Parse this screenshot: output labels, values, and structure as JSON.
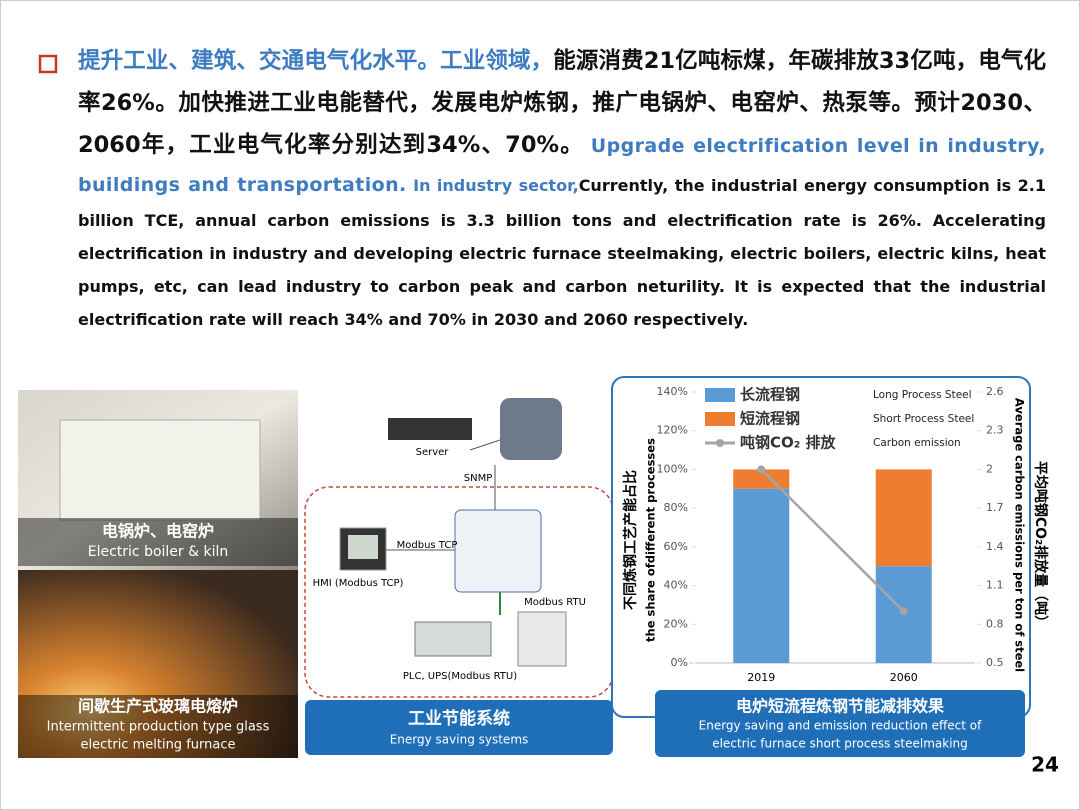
{
  "header": {
    "zh_title": "提升工业、建筑、交通电气化水平。",
    "zh_sector": "工业领域，",
    "zh_body": "能源消费21亿吨标煤，年碳排放33亿吨，电气化率26%。加快推进工业电能替代，发展电炉炼钢，推广电锅炉、电窑炉、热泵等。预计2030、2060年，工业电气化率分别达到34%、70%。",
    "en_title": "Upgrade electrification level in industry, buildings and transportation.",
    "en_sector": "In industry sector,",
    "en_body": "Currently, the industrial energy consumption is 2.1 billion TCE, annual carbon emissions is 3.3 billion tons and electrification rate is 26%. Accelerating electrification in industry and developing electric furnace steelmaking, electric boilers, electric kilns, heat pumps, etc, can lead industry to carbon peak and carbon neturility. It is expected that the industrial electrification rate will reach 34% and 70% in 2030 and 2060 respectively."
  },
  "photos": [
    {
      "zh": "电锅炉、电窑炉",
      "en_lines": [
        "Electric boiler & kiln"
      ]
    },
    {
      "zh": "间歇生产式玻璃电熔炉",
      "en_lines": [
        "Intermittent production type glass",
        "electric melting furnace"
      ]
    }
  ],
  "diagram": {
    "server": "Server",
    "snmp": "SNMP",
    "modbus_tcp": "Modbus TCP",
    "hmi": "HMI (Modbus TCP)",
    "modbus_rtu": "Modbus RTU",
    "plc_ups": "PLC, UPS(Modbus RTU)",
    "caption_zh": "工业节能系统",
    "caption_en": "Energy saving systems"
  },
  "chart_data": {
    "type": "bar",
    "stacked": true,
    "categories": [
      "2019",
      "2060"
    ],
    "series": [
      {
        "name": "长流程钢",
        "name_en": "Long Process Steel",
        "color": "#5b9bd5",
        "values": [
          90,
          50
        ]
      },
      {
        "name": "短流程钢",
        "name_en": "Short Process Steel",
        "color": "#ed7d31",
        "values": [
          10,
          50
        ]
      },
      {
        "name": "吨钢CO₂  排放",
        "name_en": "Carbon emission",
        "color": "#a5a5a5",
        "type": "line",
        "axis": "y2",
        "values": [
          2.0,
          0.9
        ]
      }
    ],
    "ylim": [
      0,
      140
    ],
    "yticks": [
      {
        "value": 0,
        "label": "0%"
      },
      {
        "value": 20,
        "label": "20%"
      },
      {
        "value": 40,
        "label": "40%"
      },
      {
        "value": 60,
        "label": "60%"
      },
      {
        "value": 80,
        "label": "80%"
      },
      {
        "value": 100,
        "label": "100%"
      },
      {
        "value": 120,
        "label": "120%"
      },
      {
        "value": 140,
        "label": "140%"
      }
    ],
    "y2lim": [
      0.5,
      2.6
    ],
    "y2ticks": [
      0.5,
      0.8,
      1.1,
      1.4,
      1.7,
      2,
      2.3,
      2.6
    ],
    "grid": false,
    "ylabel_zh": "不同炼钢工艺产能占比",
    "ylabel_en": "the share ofdifferent processes",
    "y2label_zh": "平均吨钢CO₂排放量（吨）",
    "y2label_en": "Average carbon emissions per ton of steel",
    "caption_zh": "电炉短流程炼钢节能减排效果",
    "caption_en_lines": [
      "Energy saving and emission reduction effect of",
      "electric furnace short process steelmaking"
    ]
  },
  "page_number": "24"
}
